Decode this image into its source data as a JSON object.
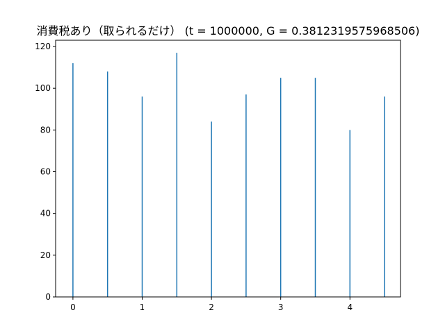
{
  "chart_data": {
    "type": "bar",
    "title": "消費税あり（取られるだけ） (t = 1000000, G = 0.3812319575968506)",
    "xlabel": "",
    "ylabel": "",
    "xlim": [
      -0.25,
      4.73
    ],
    "ylim": [
      0,
      123
    ],
    "x_ticks": [
      0,
      1,
      2,
      3,
      4
    ],
    "y_ticks": [
      0,
      20,
      40,
      60,
      80,
      100,
      120
    ],
    "bar_color": "#1f77b4",
    "x": [
      0,
      0.5,
      1,
      1.5,
      2,
      2.5,
      3,
      3.5,
      4,
      4.5
    ],
    "values": [
      112,
      108,
      96,
      117,
      84,
      97,
      105,
      105,
      80,
      96
    ],
    "grid": false,
    "legend": "none"
  }
}
